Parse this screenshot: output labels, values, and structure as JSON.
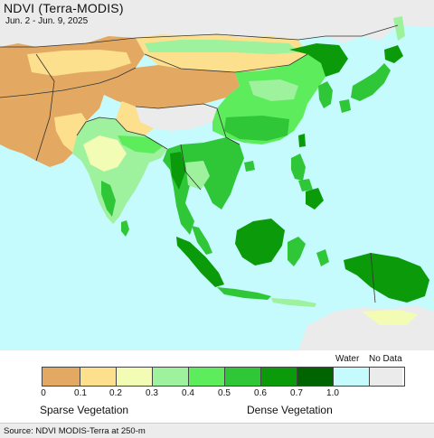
{
  "header": {
    "title": "NDVI (Terra-MODIS)",
    "date_range": "Jun. 2 - Jun. 9, 2025"
  },
  "legend": {
    "water_label": "Water",
    "nodata_label": "No Data",
    "ticks": [
      "0",
      "0.1",
      "0.2",
      "0.3",
      "0.4",
      "0.5",
      "0.6",
      "0.7",
      "1.0"
    ],
    "colors": [
      "#e3a962",
      "#fce08e",
      "#f2fcb4",
      "#9ef19d",
      "#5cec5c",
      "#2fc637",
      "#0a9a0a",
      "#006400",
      "#c6fbfd",
      "#ecebeb"
    ],
    "sparse_label": "Sparse Vegetation",
    "dense_label": "Dense Vegetation"
  },
  "footer": {
    "source": "Source: NDVI MODIS-Terra at 250-m"
  },
  "map_colors": {
    "ocean": "#c6fbfd",
    "nodata_land": "#ecebeb",
    "desert": "#e3a962",
    "arid": "#fce08e",
    "sparse": "#f2fcb4",
    "light_green": "#9ef19d",
    "green": "#5cec5c",
    "mid_green": "#2fc637",
    "dark_green": "#0a9a0a",
    "forest": "#006400",
    "border": "#333333"
  }
}
